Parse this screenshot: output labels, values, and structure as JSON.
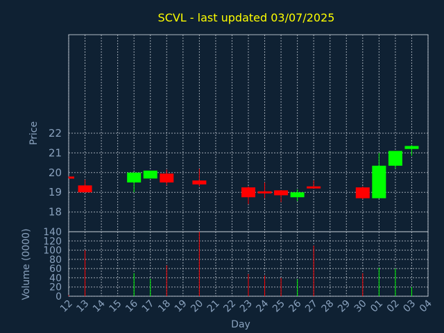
{
  "title": "SCVL - last updated 03/07/2025",
  "colors": {
    "up": "#00ff00",
    "down": "#ff0000",
    "background": "#0f2133",
    "text": "#8aa2be",
    "title": "#ffff00"
  },
  "chart_data": [
    {
      "type": "candlestick",
      "ylabel": "Price",
      "ylim": [
        17,
        27
      ],
      "yticks": [
        18,
        19,
        20,
        21,
        22
      ],
      "grid": true,
      "x": [
        "12",
        "13",
        "14",
        "15",
        "16",
        "17",
        "18",
        "19",
        "20",
        "21",
        "22",
        "23",
        "24",
        "25",
        "26",
        "27",
        "28",
        "29",
        "30",
        "01",
        "02",
        "03",
        "04"
      ],
      "candles": [
        {
          "x": "12",
          "open": 19.8,
          "close": 19.75,
          "high": 19.8,
          "low": 19.75
        },
        {
          "x": "13",
          "open": 19.35,
          "close": 19.0,
          "high": 19.65,
          "low": 19.0
        },
        {
          "x": "16",
          "open": 19.5,
          "close": 20.0,
          "high": 20.0,
          "low": 19.0
        },
        {
          "x": "17",
          "open": 19.7,
          "close": 20.1,
          "high": 20.1,
          "low": 19.7
        },
        {
          "x": "18",
          "open": 19.95,
          "close": 19.5,
          "high": 20.15,
          "low": 19.35
        },
        {
          "x": "20",
          "open": 19.6,
          "close": 19.4,
          "high": 20.2,
          "low": 19.3
        },
        {
          "x": "23",
          "open": 19.25,
          "close": 18.75,
          "high": 19.3,
          "low": 18.4
        },
        {
          "x": "24",
          "open": 19.05,
          "close": 19.0,
          "high": 19.5,
          "low": 18.7
        },
        {
          "x": "25",
          "open": 19.1,
          "close": 18.85,
          "high": 19.1,
          "low": 18.5
        },
        {
          "x": "26",
          "open": 18.75,
          "close": 19.0,
          "high": 19.15,
          "low": 18.55
        },
        {
          "x": "27",
          "open": 19.3,
          "close": 19.25,
          "high": 19.6,
          "low": 19.2
        },
        {
          "x": "30",
          "open": 19.25,
          "close": 18.7,
          "high": 19.3,
          "low": 18.65
        },
        {
          "x": "01",
          "open": 18.7,
          "close": 20.35,
          "high": 21.0,
          "low": 18.7
        },
        {
          "x": "02",
          "open": 20.35,
          "close": 21.1,
          "high": 21.1,
          "low": 20.2
        },
        {
          "x": "03",
          "open": 21.2,
          "close": 21.35,
          "high": 21.4,
          "low": 20.85
        }
      ]
    },
    {
      "type": "bar",
      "ylabel": "Volume (0000)",
      "xlabel": "Day",
      "ylim": [
        0,
        140
      ],
      "yticks": [
        0,
        20,
        40,
        60,
        80,
        100,
        120,
        140
      ],
      "grid": true,
      "bars": [
        {
          "x": "12",
          "value": 2,
          "direction": "down"
        },
        {
          "x": "13",
          "value": 100,
          "direction": "down"
        },
        {
          "x": "16",
          "value": 50,
          "direction": "up"
        },
        {
          "x": "17",
          "value": 38,
          "direction": "up"
        },
        {
          "x": "18",
          "value": 67,
          "direction": "down"
        },
        {
          "x": "20",
          "value": 140,
          "direction": "down"
        },
        {
          "x": "23",
          "value": 48,
          "direction": "down"
        },
        {
          "x": "24",
          "value": 45,
          "direction": "down"
        },
        {
          "x": "25",
          "value": 40,
          "direction": "down"
        },
        {
          "x": "26",
          "value": 37,
          "direction": "up"
        },
        {
          "x": "27",
          "value": 110,
          "direction": "down"
        },
        {
          "x": "30",
          "value": 50,
          "direction": "down"
        },
        {
          "x": "01",
          "value": 62,
          "direction": "up"
        },
        {
          "x": "02",
          "value": 60,
          "direction": "up"
        },
        {
          "x": "03",
          "value": 20,
          "direction": "up"
        }
      ]
    }
  ]
}
